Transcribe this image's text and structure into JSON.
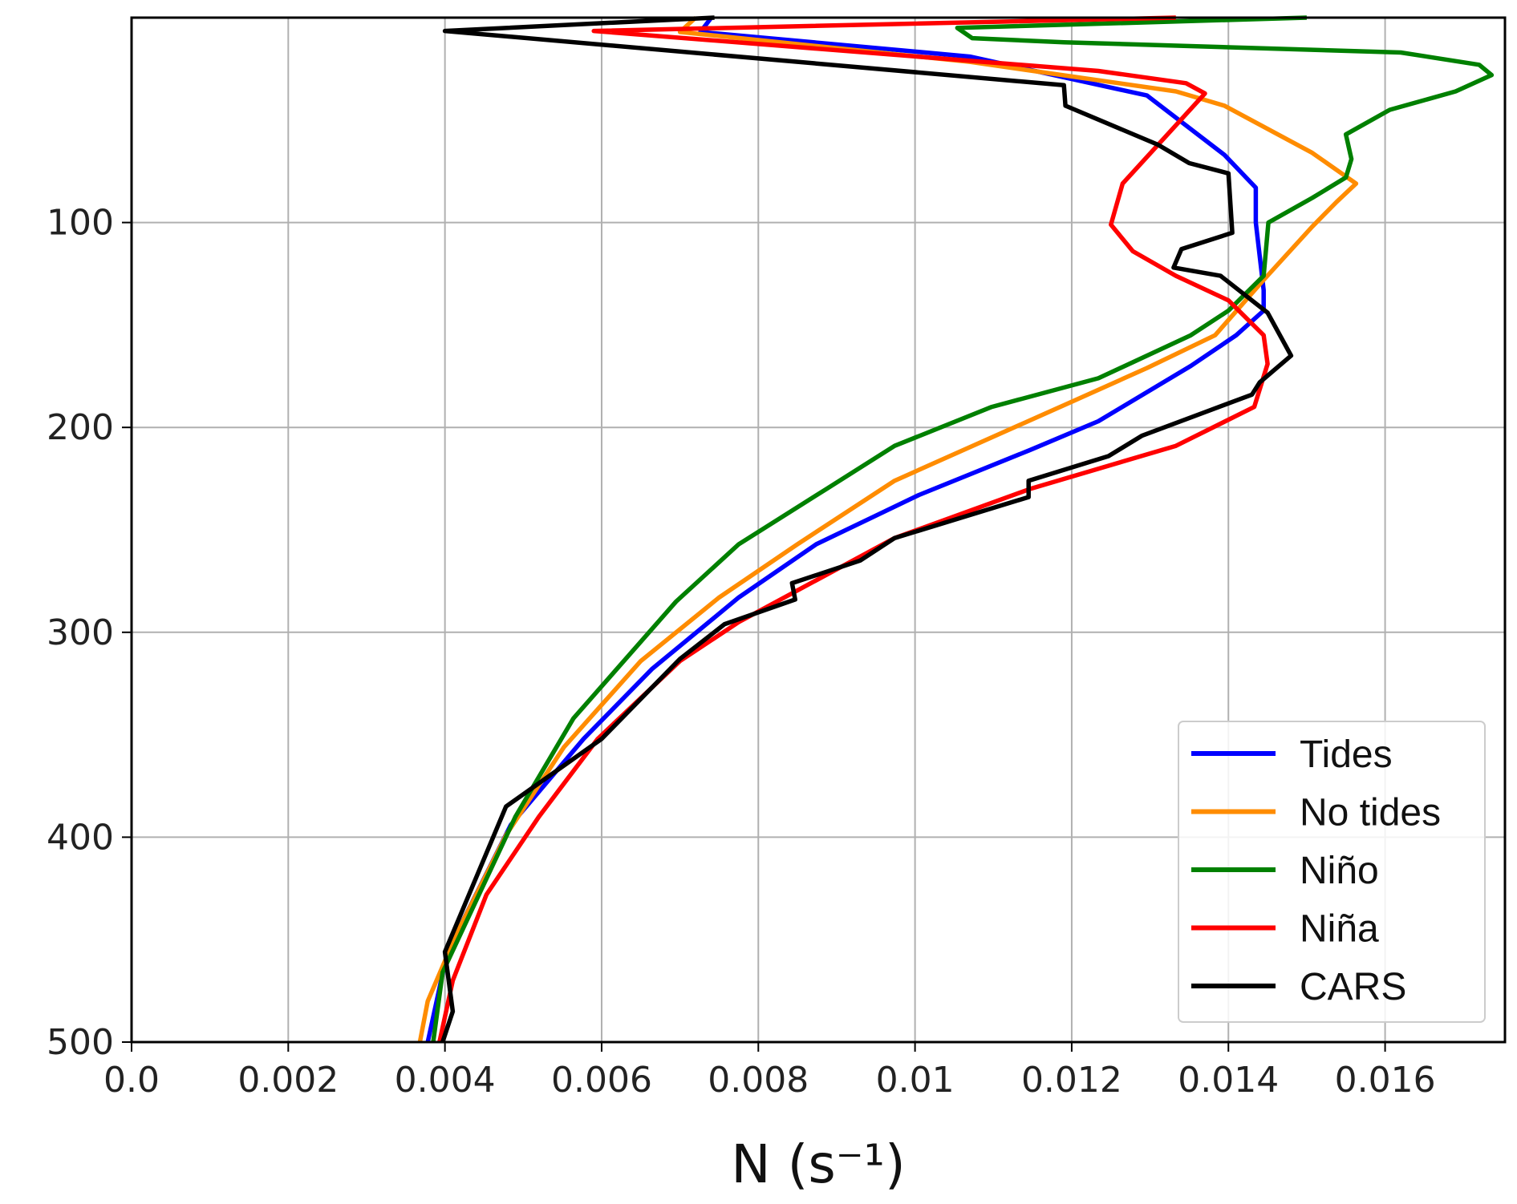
{
  "chart_data": {
    "type": "line",
    "title": "",
    "xlabel": "N (s⁻¹)",
    "xlabel_base": "N (",
    "xlabel_var": "s",
    "xlabel_exp": "−1",
    "xlabel_close": ")",
    "ylabel": "",
    "xlim": [
      0,
      0.01753
    ],
    "ylim": [
      0,
      500
    ],
    "y_inverted": true,
    "grid": true,
    "legend_position": "bottom-right",
    "xticks": [
      0,
      0.002,
      0.004,
      0.006,
      0.008,
      0.01,
      0.012,
      0.014,
      0.016
    ],
    "xtick_labels": [
      "0.0",
      "0.002",
      "0.004",
      "0.006",
      "0.008",
      "0.01",
      "0.012",
      "0.014",
      "0.016"
    ],
    "yticks": [
      100,
      200,
      300,
      400,
      500
    ],
    "ytick_labels": [
      "100",
      "200",
      "300",
      "400",
      "500"
    ],
    "series": [
      {
        "name": "Tides",
        "color": "#0000ff",
        "points": [
          [
            0.0074,
            0
          ],
          [
            0.00726,
            7
          ],
          [
            0.0107,
            19
          ],
          [
            0.01296,
            38
          ],
          [
            0.01395,
            67
          ],
          [
            0.01435,
            83
          ],
          [
            0.01435,
            100
          ],
          [
            0.01445,
            133
          ],
          [
            0.01445,
            143
          ],
          [
            0.0141,
            155
          ],
          [
            0.01352,
            170
          ],
          [
            0.01234,
            197
          ],
          [
            0.01147,
            211
          ],
          [
            0.01005,
            233
          ],
          [
            0.00874,
            257
          ],
          [
            0.00775,
            283
          ],
          [
            0.00664,
            318
          ],
          [
            0.00577,
            352
          ],
          [
            0.00484,
            394
          ],
          [
            0.00403,
            456
          ],
          [
            0.00378,
            500
          ]
        ]
      },
      {
        "name": "No tides",
        "color": "#ff8c00",
        "points": [
          [
            0.0072,
            0
          ],
          [
            0.007,
            7
          ],
          [
            0.0107,
            21.6
          ],
          [
            0.01333,
            36
          ],
          [
            0.01395,
            43
          ],
          [
            0.01507,
            66
          ],
          [
            0.01563,
            81
          ],
          [
            0.01538,
            90
          ],
          [
            0.01507,
            102
          ],
          [
            0.01445,
            128
          ],
          [
            0.01383,
            155
          ],
          [
            0.01296,
            171
          ],
          [
            0.01197,
            188
          ],
          [
            0.00974,
            226
          ],
          [
            0.0085,
            257
          ],
          [
            0.0075,
            283
          ],
          [
            0.0065,
            314
          ],
          [
            0.00552,
            356
          ],
          [
            0.00478,
            399
          ],
          [
            0.00415,
            447
          ],
          [
            0.00378,
            480
          ],
          [
            0.00368,
            500
          ]
        ]
      },
      {
        "name": "Niño",
        "color": "#008000",
        "points": [
          [
            0.015,
            0
          ],
          [
            0.01054,
            5
          ],
          [
            0.01073,
            10
          ],
          [
            0.0119,
            12
          ],
          [
            0.0162,
            17
          ],
          [
            0.0172,
            23
          ],
          [
            0.01736,
            28
          ],
          [
            0.0169,
            36
          ],
          [
            0.01606,
            45
          ],
          [
            0.0155,
            57
          ],
          [
            0.01557,
            69
          ],
          [
            0.0155,
            78
          ],
          [
            0.01507,
            88
          ],
          [
            0.01451,
            100
          ],
          [
            0.01445,
            126
          ],
          [
            0.014,
            143
          ],
          [
            0.01352,
            155
          ],
          [
            0.01234,
            176
          ],
          [
            0.01098,
            190
          ],
          [
            0.00974,
            209
          ],
          [
            0.00887,
            230
          ],
          [
            0.00775,
            257
          ],
          [
            0.00695,
            285
          ],
          [
            0.00564,
            342
          ],
          [
            0.0049,
            390
          ],
          [
            0.00397,
            466
          ],
          [
            0.00385,
            500
          ]
        ]
      },
      {
        "name": "Niña",
        "color": "#ff0000",
        "points": [
          [
            0.01333,
            0
          ],
          [
            0.0059,
            6.5
          ],
          [
            0.01234,
            26
          ],
          [
            0.01346,
            32
          ],
          [
            0.0137,
            37
          ],
          [
            0.01265,
            81
          ],
          [
            0.0125,
            101
          ],
          [
            0.01278,
            114
          ],
          [
            0.01333,
            126
          ],
          [
            0.014,
            138
          ],
          [
            0.01445,
            155
          ],
          [
            0.0145,
            169
          ],
          [
            0.01433,
            190
          ],
          [
            0.01333,
            209
          ],
          [
            0.01147,
            230
          ],
          [
            0.00974,
            254
          ],
          [
            0.00775,
            295
          ],
          [
            0.007,
            314
          ],
          [
            0.00595,
            352
          ],
          [
            0.0052,
            390
          ],
          [
            0.00453,
            428
          ],
          [
            0.0041,
            470
          ],
          [
            0.00393,
            500
          ]
        ]
      },
      {
        "name": "CARS",
        "color": "#000000",
        "points": [
          [
            0.00744,
            0
          ],
          [
            0.004,
            6.5
          ],
          [
            0.0119,
            33
          ],
          [
            0.01192,
            43
          ],
          [
            0.0131,
            62
          ],
          [
            0.0135,
            71
          ],
          [
            0.014,
            76
          ],
          [
            0.01405,
            105
          ],
          [
            0.0134,
            113
          ],
          [
            0.0133,
            122
          ],
          [
            0.0139,
            126
          ],
          [
            0.0145,
            144
          ],
          [
            0.0148,
            165
          ],
          [
            0.0144,
            178
          ],
          [
            0.0143,
            184
          ],
          [
            0.0129,
            204
          ],
          [
            0.01247,
            214
          ],
          [
            0.01145,
            226
          ],
          [
            0.01145,
            234
          ],
          [
            0.00974,
            254
          ],
          [
            0.0093,
            265
          ],
          [
            0.00843,
            276
          ],
          [
            0.00847,
            284
          ],
          [
            0.00757,
            296
          ],
          [
            0.007,
            313
          ],
          [
            0.006,
            352
          ],
          [
            0.00478,
            385
          ],
          [
            0.004,
            456
          ],
          [
            0.0041,
            485
          ],
          [
            0.00397,
            500
          ]
        ]
      }
    ]
  }
}
